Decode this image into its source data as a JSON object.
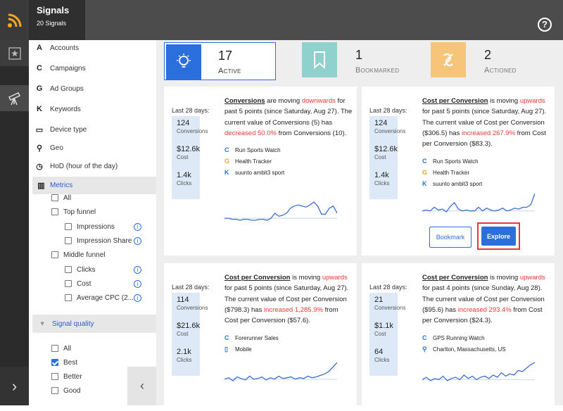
{
  "header": {
    "title": "Signals",
    "subtitle": "20 Signals",
    "help": "?"
  },
  "nav": {
    "accounts": "Accounts",
    "campaigns": "Campaigns",
    "ad_groups": "Ad Groups",
    "keywords": "Keywords",
    "device_type": "Device type",
    "geo": "Geo",
    "hod": "HoD (hour of the day)",
    "metrics": "Metrics",
    "signal_quality": "Signal quality"
  },
  "metrics_filters": {
    "all": "All",
    "top_funnel": "Top funnel",
    "impressions": "Impressions",
    "impression_share": "Impression Share",
    "middle_funnel": "Middle funnel",
    "clicks": "Clicks",
    "cost": "Cost",
    "average_cpc": "Average CPC (2..."
  },
  "quality_filters": {
    "all": "All",
    "best": "Best",
    "better": "Better",
    "good": "Good"
  },
  "tiles": [
    {
      "count": "17",
      "label": "Active"
    },
    {
      "count": "1",
      "label": "Bookmarked"
    },
    {
      "count": "2",
      "label": "Actioned"
    }
  ],
  "cards": [
    {
      "period": "Last 28 days:",
      "stats": [
        {
          "v": "124",
          "k": "Conversions"
        },
        {
          "v": "$12.6k",
          "k": "Cost"
        },
        {
          "v": "1.4k",
          "k": "Clicks"
        }
      ],
      "metric": "Conversions",
      "is": " are moving ",
      "dir": "downwards",
      "rest": " for past 5 points (since Saturday, Aug 27). The current value of Conversions (5) has ",
      "change": "decreased 50.0%",
      "tail": " from Conversions (10).",
      "items": [
        {
          "icon": "C",
          "label": "Run Sports Watch"
        },
        {
          "icon": "G",
          "label": "Health Tracker"
        },
        {
          "icon": "K",
          "label": "suunto ambit3 sport"
        }
      ],
      "spark": [
        14,
        14,
        13,
        13,
        12,
        13,
        13,
        12,
        12,
        13,
        13,
        12,
        14,
        19,
        16,
        17,
        19,
        24,
        26,
        27,
        26,
        25,
        27,
        30,
        26,
        18,
        18,
        24,
        26,
        19
      ],
      "sparkColor": "#3b6ecf"
    },
    {
      "period": "Last 28 days:",
      "stats": [
        {
          "v": "124",
          "k": "Conversions"
        },
        {
          "v": "$12.6k",
          "k": "Cost"
        },
        {
          "v": "1.4k",
          "k": "Clicks"
        }
      ],
      "metric": "Cost per Conversion",
      "is": " is moving ",
      "dir": "upwards",
      "rest": " for past 5 points (since Saturday, Aug 27). The current value of Cost per Conversion ($306.5) has ",
      "change": "increased 267.9%",
      "tail": " from Cost per Conversion ($83.3).",
      "items": [
        {
          "icon": "C",
          "label": "Run Sports Watch"
        },
        {
          "icon": "G",
          "label": "Health Tracker"
        },
        {
          "icon": "K",
          "label": "suunto ambit3 sport"
        }
      ],
      "spark": [
        9,
        10,
        9,
        13,
        10,
        11,
        8,
        14,
        18,
        11,
        9,
        10,
        9,
        9,
        13,
        9,
        12,
        10,
        9,
        10,
        12,
        9,
        10,
        12,
        11,
        13,
        13,
        16,
        28
      ],
      "sparkColor": "#3b6ecf",
      "bookmark": "Bookmark",
      "explore": "Explore"
    },
    {
      "period": "Last 28 days:",
      "stats": [
        {
          "v": "114",
          "k": "Conversions"
        },
        {
          "v": "$21.6k",
          "k": "Cost"
        },
        {
          "v": "2.1k",
          "k": "Clicks"
        }
      ],
      "metric": "Cost per Conversion",
      "is": " is moving ",
      "dir": "upwards",
      "rest": " for past 5 points (since Saturday, Aug 27). The current value of Cost per Conversion ($798.3) has ",
      "change": "increased 1,285.9%",
      "tail": " from Cost per Conversion ($57.6).",
      "items": [
        {
          "icon": "C",
          "label": "Forerunner Sales"
        },
        {
          "icon": "mobile",
          "label": "Mobile"
        }
      ],
      "spark": [
        10,
        12,
        8,
        13,
        11,
        9,
        14,
        10,
        11,
        13,
        9,
        12,
        10,
        14,
        11,
        12,
        13,
        10,
        12,
        11,
        14,
        12,
        13,
        15,
        17,
        20,
        26,
        32
      ],
      "sparkColor": "#3b6ecf"
    },
    {
      "period": "Last 28 days:",
      "stats": [
        {
          "v": "21",
          "k": "Conversions"
        },
        {
          "v": "$1.1k",
          "k": "Cost"
        },
        {
          "v": "64",
          "k": "Clicks"
        }
      ],
      "metric": "Cost per Conversion",
      "is": " is moving ",
      "dir": "upwards",
      "rest": " for past 4 points (since Sunday, Aug 28). The current value of Cost per Conversion ($95.6) has ",
      "change": "increased 293.4%",
      "tail": " from Cost per Conversion ($24.3).",
      "items": [
        {
          "icon": "C",
          "label": "GPS Running Watch"
        },
        {
          "icon": "pin",
          "label": "Charlton, Massachusetts, US"
        }
      ],
      "spark": [
        9,
        11,
        8,
        10,
        9,
        12,
        8,
        10,
        11,
        9,
        13,
        10,
        12,
        9,
        11,
        12,
        10,
        13,
        11,
        15,
        12,
        14,
        13,
        17,
        16,
        19,
        22,
        24
      ],
      "sparkColor": "#3b6ecf"
    }
  ]
}
